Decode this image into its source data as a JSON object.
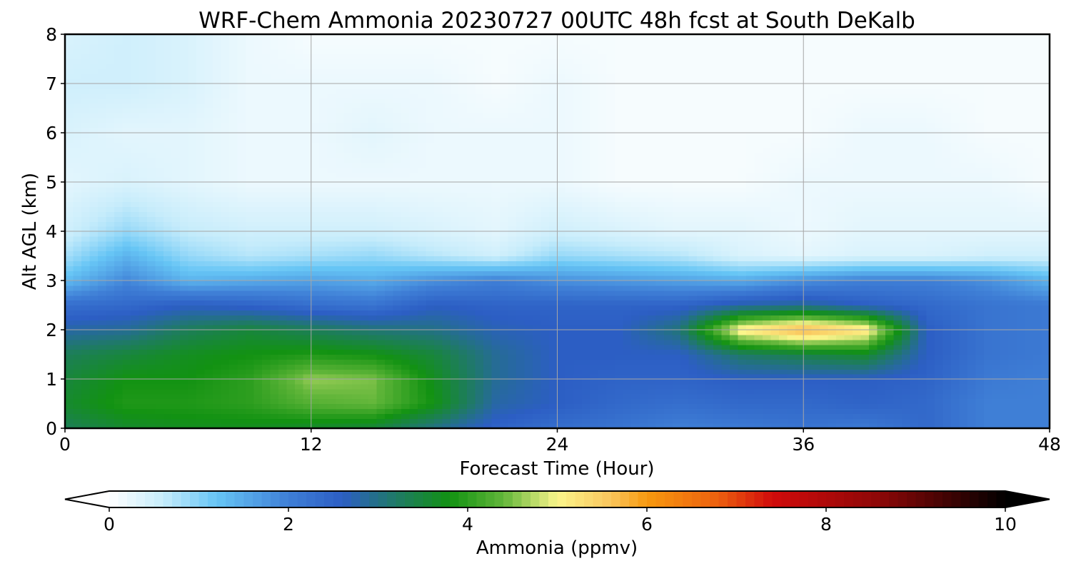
{
  "chart_data": {
    "type": "heatmap",
    "subtype": "filled-contour time-height cross section",
    "title": "WRF-Chem Ammonia  20230727 00UTC 48h fcst at South DeKalb",
    "xlabel": "Forecast Time (Hour)",
    "ylabel": "Alt AGL (km)",
    "xlim": [
      0,
      48
    ],
    "ylim": [
      0,
      8
    ],
    "xticks": [
      0,
      12,
      24,
      36,
      48
    ],
    "xtick_labels": [
      "0",
      "12",
      "24",
      "36",
      "48"
    ],
    "yticks": [
      0,
      1,
      2,
      3,
      4,
      5,
      6,
      7,
      8
    ],
    "ytick_labels": [
      "0",
      "1",
      "2",
      "3",
      "4",
      "5",
      "6",
      "7",
      "8"
    ],
    "grid": true,
    "colorbar": {
      "label": "Ammonia  (ppmv)",
      "orientation": "horizontal",
      "position": "bottom",
      "extend": "both",
      "range": [
        0,
        10
      ],
      "ticks": [
        0,
        2,
        4,
        6,
        8,
        10
      ],
      "tick_labels": [
        "0",
        "2",
        "4",
        "6",
        "8",
        "10"
      ],
      "colors": [
        {
          "value": 0.0,
          "color": "#ffffff"
        },
        {
          "value": 0.6,
          "color": "#c6ecfb"
        },
        {
          "value": 1.2,
          "color": "#66c5f5"
        },
        {
          "value": 2.0,
          "color": "#3f7fd6"
        },
        {
          "value": 2.6,
          "color": "#2c5ec4"
        },
        {
          "value": 3.2,
          "color": "#1f7a66"
        },
        {
          "value": 3.8,
          "color": "#129212"
        },
        {
          "value": 4.4,
          "color": "#62b63a"
        },
        {
          "value": 5.0,
          "color": "#fbf58b"
        },
        {
          "value": 5.6,
          "color": "#fac55c"
        },
        {
          "value": 6.0,
          "color": "#f7990f"
        },
        {
          "value": 6.8,
          "color": "#ec5f0f"
        },
        {
          "value": 7.4,
          "color": "#d10b0b"
        },
        {
          "value": 8.6,
          "color": "#8c0707"
        },
        {
          "value": 10.0,
          "color": "#000000"
        }
      ]
    },
    "grid_x": [
      0,
      3,
      6,
      9,
      12,
      15,
      18,
      21,
      24,
      27,
      30,
      33,
      36,
      39,
      42,
      45,
      48
    ],
    "grid_y": [
      0,
      0.5,
      1,
      1.5,
      2,
      2.5,
      3,
      3.5,
      4,
      5,
      6,
      7,
      8
    ],
    "values": [
      [
        3.3,
        3.6,
        3.7,
        3.7,
        3.6,
        3.5,
        3.0,
        2.5,
        2.3,
        2.2,
        2.0,
        2.1,
        2.2,
        2.1,
        2.4,
        2.0,
        2.0
      ],
      [
        3.6,
        3.9,
        3.9,
        4.0,
        4.3,
        4.4,
        3.8,
        2.8,
        2.6,
        2.4,
        2.3,
        2.4,
        2.4,
        2.5,
        2.4,
        2.0,
        2.0
      ],
      [
        3.5,
        3.8,
        3.8,
        4.0,
        4.6,
        4.5,
        3.7,
        2.9,
        2.6,
        2.5,
        2.5,
        2.6,
        2.6,
        2.6,
        2.5,
        2.1,
        2.0
      ],
      [
        3.3,
        3.5,
        3.7,
        3.8,
        3.9,
        3.8,
        3.5,
        2.9,
        2.6,
        2.6,
        2.6,
        3.2,
        3.4,
        3.6,
        2.6,
        2.2,
        2.1
      ],
      [
        2.8,
        2.9,
        3.3,
        3.5,
        3.3,
        3.1,
        3.0,
        2.7,
        2.6,
        2.6,
        3.1,
        5.2,
        5.8,
        5.3,
        2.6,
        2.2,
        2.1
      ],
      [
        2.3,
        2.4,
        2.6,
        2.5,
        2.3,
        2.2,
        2.6,
        2.5,
        2.5,
        2.5,
        2.5,
        2.8,
        2.9,
        2.6,
        2.4,
        2.2,
        2.1
      ],
      [
        1.3,
        1.9,
        1.4,
        1.5,
        1.6,
        1.5,
        1.8,
        2.0,
        1.8,
        1.7,
        1.6,
        1.5,
        1.8,
        2.0,
        2.0,
        1.8,
        1.4
      ],
      [
        0.8,
        1.4,
        0.9,
        0.7,
        0.8,
        0.9,
        0.7,
        0.5,
        0.9,
        0.8,
        0.7,
        0.4,
        0.3,
        0.4,
        0.4,
        0.5,
        0.5
      ],
      [
        0.5,
        0.9,
        0.6,
        0.5,
        0.5,
        0.5,
        0.4,
        0.3,
        0.5,
        0.4,
        0.3,
        0.3,
        0.2,
        0.3,
        0.3,
        0.3,
        0.3
      ],
      [
        0.3,
        0.4,
        0.3,
        0.2,
        0.2,
        0.2,
        0.2,
        0.2,
        0.2,
        0.1,
        0.1,
        0.1,
        0.2,
        0.2,
        0.2,
        0.2,
        0.1
      ],
      [
        0.4,
        0.3,
        0.3,
        0.2,
        0.2,
        0.3,
        0.2,
        0.2,
        0.2,
        0.1,
        0.1,
        0.1,
        0.1,
        0.2,
        0.2,
        0.1,
        0.1
      ],
      [
        0.5,
        0.5,
        0.4,
        0.2,
        0.2,
        0.2,
        0.2,
        0.1,
        0.2,
        0.1,
        0.1,
        0.1,
        0.1,
        0.1,
        0.1,
        0.1,
        0.1
      ],
      [
        0.4,
        0.5,
        0.4,
        0.2,
        0.1,
        0.1,
        0.1,
        0.1,
        0.1,
        0.1,
        0.1,
        0.1,
        0.1,
        0.1,
        0.1,
        0.1,
        0.1
      ]
    ]
  }
}
